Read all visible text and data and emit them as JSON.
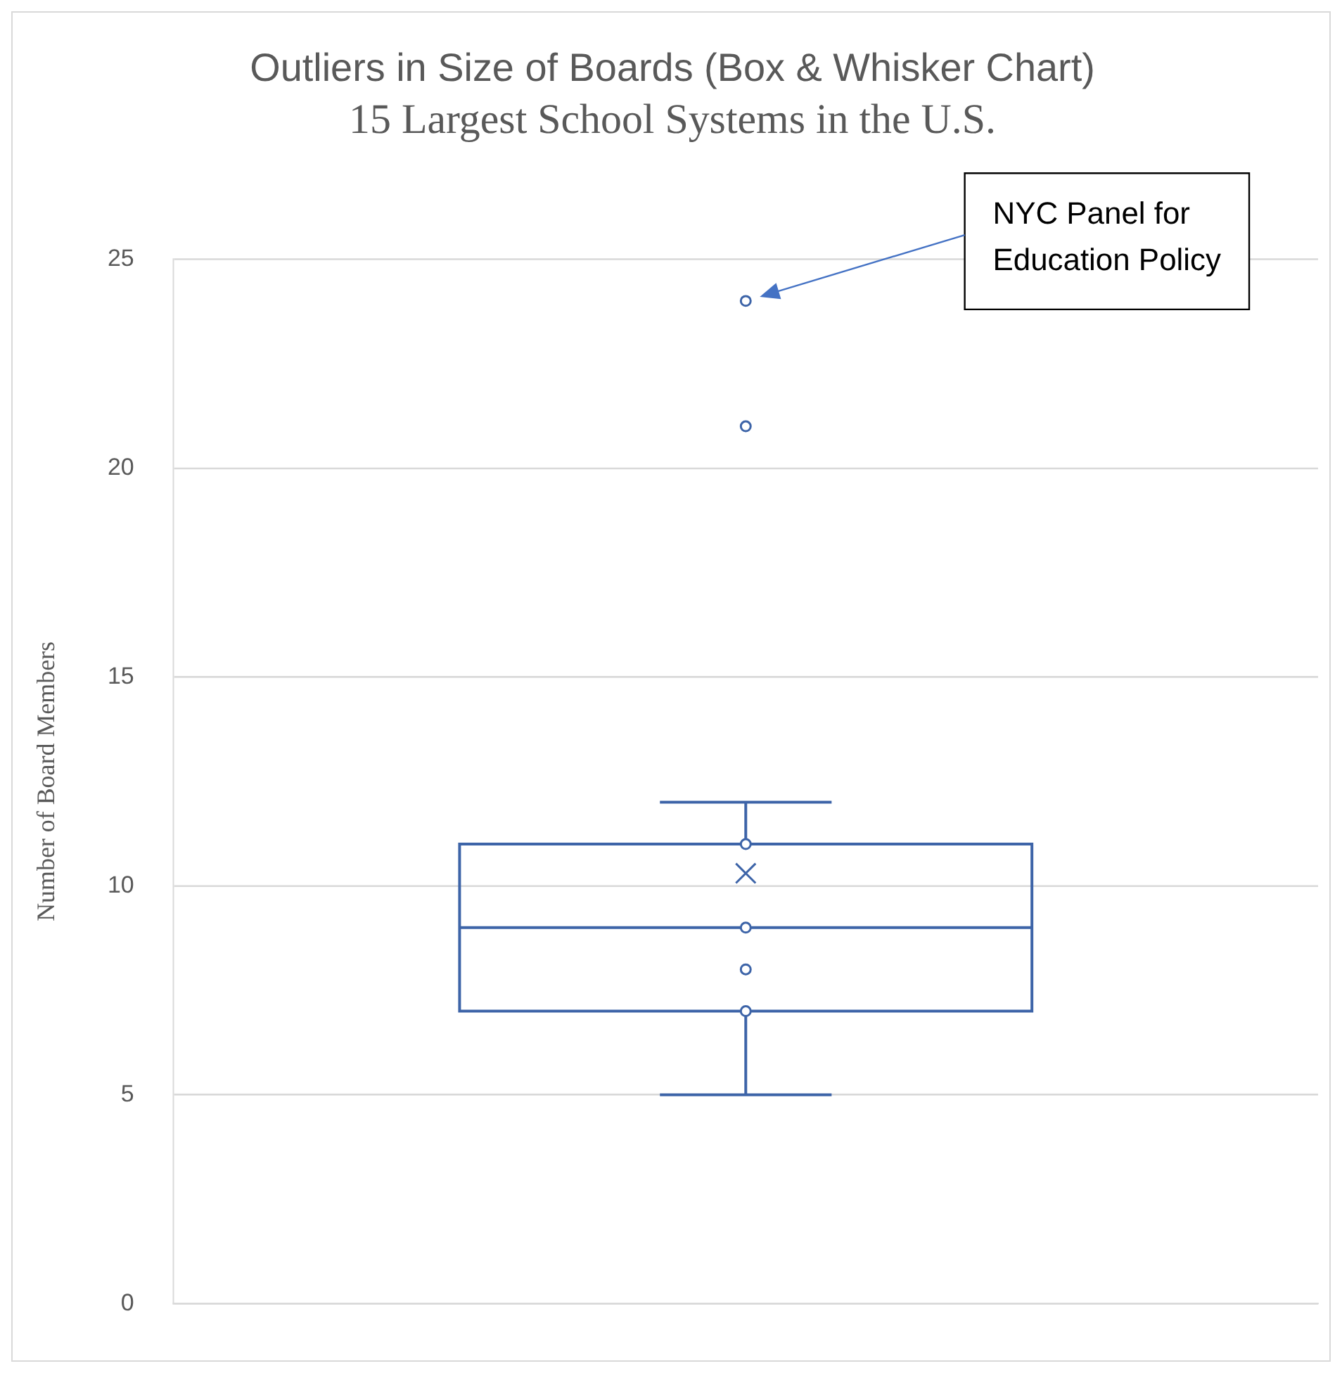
{
  "chart_data": {
    "type": "box",
    "title": "Outliers in Size of Boards (Box & Whisker Chart)",
    "subtitle": "15 Largest School Systems in the U.S.",
    "ylabel": "Number of Board Members",
    "categories": [
      null
    ],
    "boxes": [
      {
        "low": 5,
        "q1": 7,
        "median": 9,
        "q3": 11,
        "high": 12,
        "mean": 10.3,
        "outliers": [
          21,
          24
        ]
      }
    ],
    "color": "#3d64a8",
    "series": [
      {
        "type": "scatter",
        "color": "#3d64a8",
        "x": [
          null,
          null,
          null,
          null
        ],
        "values": [
          7,
          8,
          9,
          11
        ]
      }
    ],
    "ylim": [
      0,
      25
    ],
    "yticks": [
      0,
      5,
      10,
      15,
      20,
      25
    ],
    "grid": "y",
    "annotations": [
      "NYC Panel for Education Policy"
    ]
  }
}
